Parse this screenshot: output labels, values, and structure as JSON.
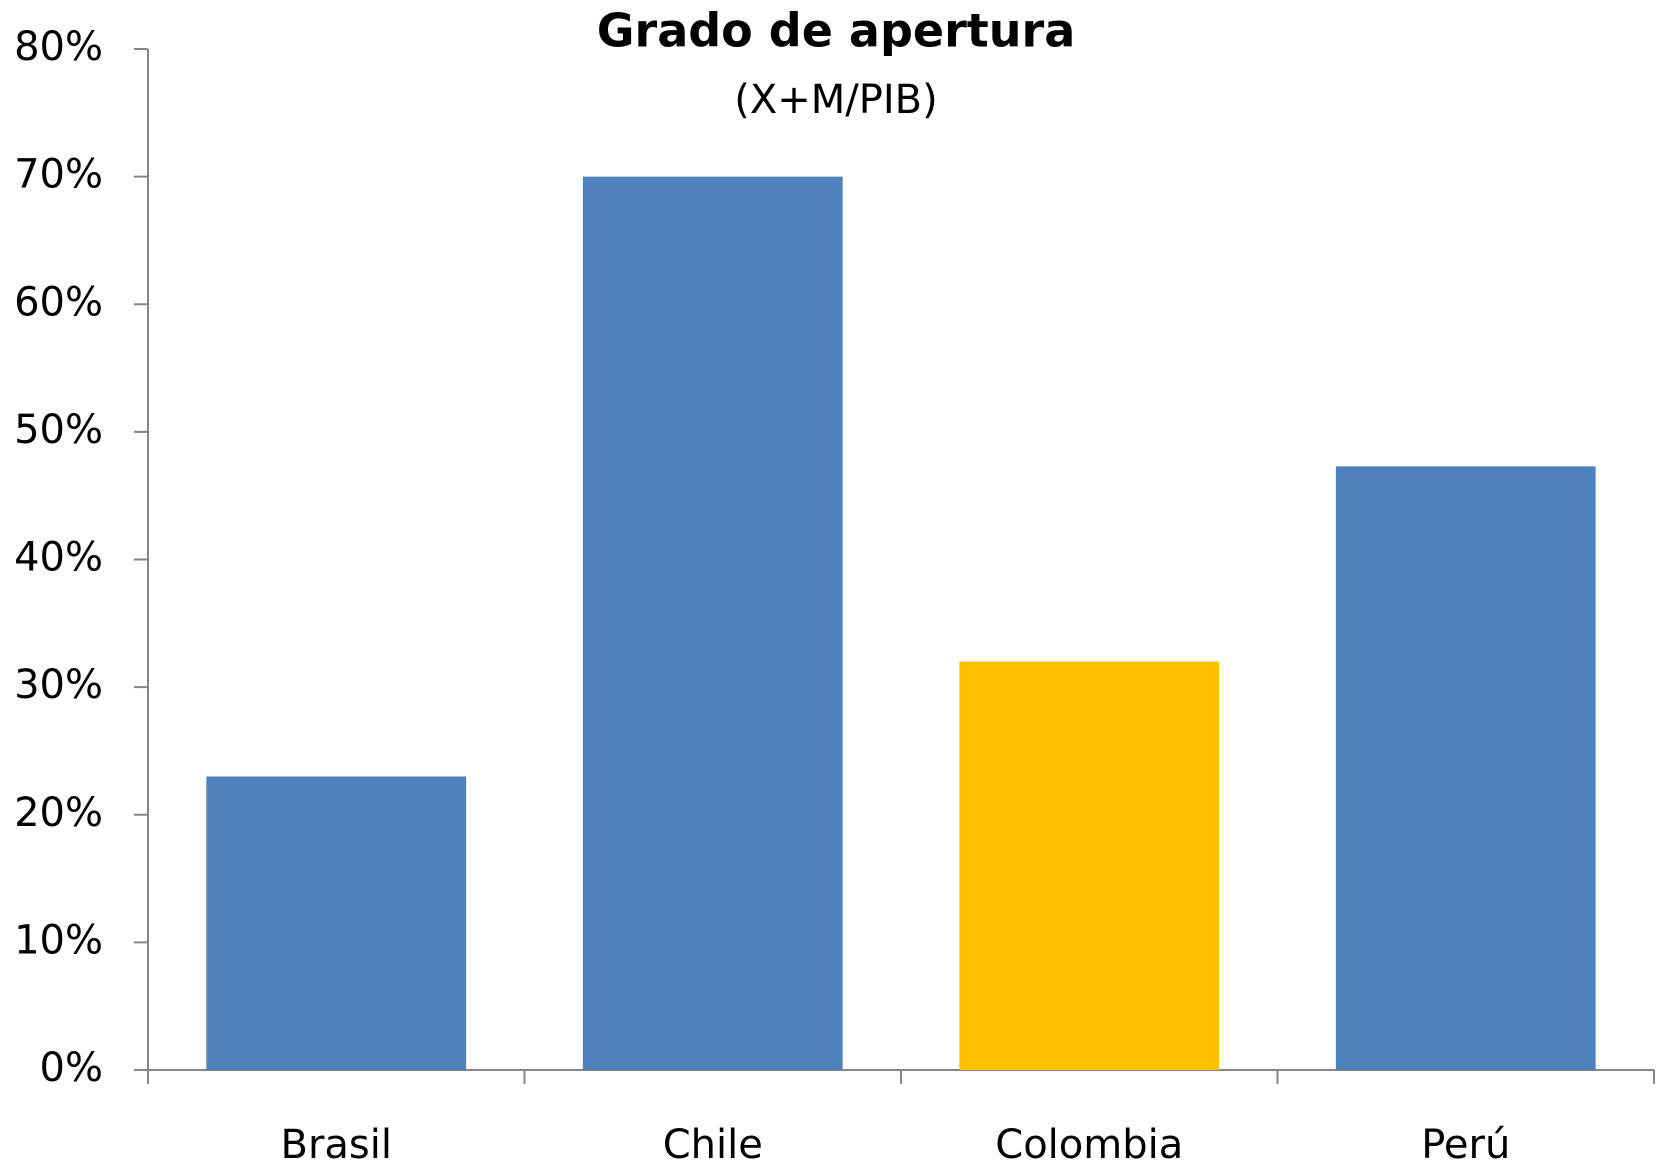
{
  "chart_data": {
    "type": "bar",
    "title": "Grado de apertura",
    "subtitle": "(X+M/PIB)",
    "categories": [
      "Brasil",
      "Chile",
      "Colombia",
      "Perú"
    ],
    "values": [
      23,
      70,
      32,
      47.3
    ],
    "colors": [
      "#4f81bd",
      "#4f81bd",
      "#ffc000",
      "#4f81bd"
    ],
    "ylim": [
      0,
      80
    ],
    "yticks": [
      {
        "value": 0,
        "label": "0%"
      },
      {
        "value": 10,
        "label": "10%"
      },
      {
        "value": 20,
        "label": "20%"
      },
      {
        "value": 30,
        "label": "30%"
      },
      {
        "value": 40,
        "label": "40%"
      },
      {
        "value": 50,
        "label": "50%"
      },
      {
        "value": 60,
        "label": "60%"
      },
      {
        "value": 70,
        "label": "70%"
      },
      {
        "value": 80,
        "label": "80%"
      }
    ],
    "grid": false
  }
}
